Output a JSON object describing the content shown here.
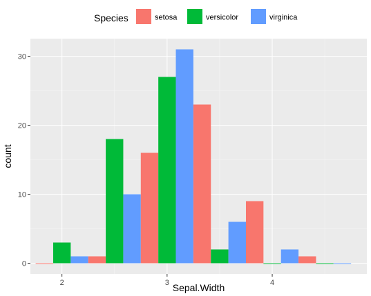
{
  "chart_data": {
    "type": "bar",
    "xlabel": "Sepal.Width",
    "ylabel": "count",
    "legend_title": "Species",
    "legend_position": "top",
    "grid": true,
    "x_ticks": [
      2,
      3,
      4
    ],
    "y_ticks": [
      0,
      10,
      20,
      30
    ],
    "x_range": [
      1.7,
      4.9
    ],
    "y_range": [
      -1.55,
      32.55
    ],
    "bar_centers": [
      2.0,
      2.5,
      3.0,
      3.5,
      4.0,
      4.5
    ],
    "bin_width": 0.5,
    "series": [
      {
        "name": "setosa",
        "color": "#F8766D",
        "values": [
          0,
          1,
          16,
          23,
          9,
          1
        ]
      },
      {
        "name": "versicolor",
        "color": "#00BA38",
        "values": [
          3,
          18,
          27,
          2,
          0,
          0
        ]
      },
      {
        "name": "virginica",
        "color": "#619CFF",
        "values": [
          1,
          10,
          31,
          6,
          2,
          0
        ]
      }
    ]
  },
  "style": {
    "panel_background": "#EBEBEB",
    "grid_major": "#FFFFFF",
    "grid_minor": "#F5F5F5"
  }
}
